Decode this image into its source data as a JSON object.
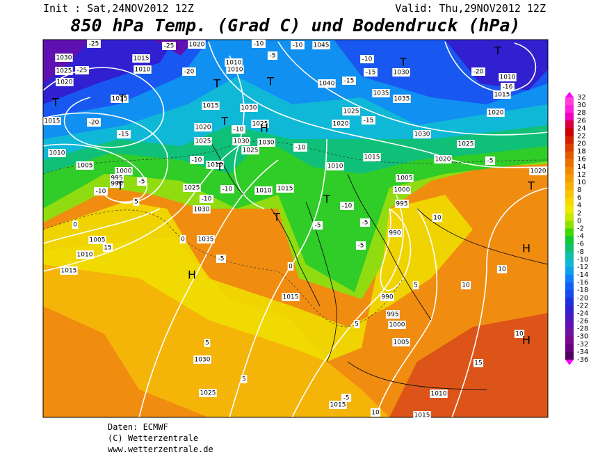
{
  "header": {
    "init": "Init : Sat,24NOV2012 12Z",
    "valid": "Valid: Thu,29NOV2012 12Z",
    "title": "850 hPa Temp. (Grad C) und Bodendruck (hPa)"
  },
  "footer": [
    "Daten: ECMWF",
    "(C) Wetterzentrale",
    "www.wetterzentrale.de"
  ],
  "colorbar": {
    "ticks": [
      32,
      30,
      28,
      26,
      24,
      22,
      20,
      18,
      16,
      14,
      12,
      10,
      8,
      6,
      4,
      2,
      0,
      -2,
      -4,
      -6,
      -8,
      -10,
      -12,
      -14,
      -16,
      -18,
      -20,
      -22,
      -24,
      -26,
      -28,
      -30,
      -32,
      -34,
      -36
    ],
    "colors": [
      "#ff3fd8",
      "#ff1fe0",
      "#f000c0",
      "#d8003c",
      "#c80000",
      "#d42000",
      "#dc3c00",
      "#e45800",
      "#ec7000",
      "#f08800",
      "#f49c00",
      "#f8b000",
      "#f8c400",
      "#f8d800",
      "#f0e800",
      "#c8e800",
      "#90e000",
      "#40d800",
      "#10c830",
      "#10c070",
      "#10c0a8",
      "#10b8d8",
      "#10a0f0",
      "#1080f8",
      "#1060f8",
      "#1848f0",
      "#2030e0",
      "#3020d0",
      "#4818c0",
      "#6010b0",
      "#7010a0",
      "#780890",
      "#6a0080",
      "#500060"
    ]
  },
  "map": {
    "labels": [
      "-25",
      "-25",
      "1020",
      "-10",
      "1045",
      "-10",
      "1030",
      "1015",
      "1025",
      "-25",
      "1010",
      "-20",
      "1010",
      "1010",
      "-5",
      "-10",
      "-15",
      "1030",
      "-20",
      "1010",
      "1020",
      "1015",
      "1040",
      "-15",
      "-16",
      "1015",
      "1035",
      "1035",
      "1015",
      "1030",
      "1025",
      "1020",
      "1015",
      "-20",
      "1025",
      "1020",
      "-15",
      "1020",
      "-10",
      "-15",
      "1030",
      "1025",
      "1030",
      "1030",
      "1025",
      "1010",
      "1025",
      "-10",
      "1015",
      "1020",
      "-5",
      "1005",
      "1000",
      "-10",
      "1010",
      "1010",
      "1020",
      "995",
      "990",
      "-5",
      "1005",
      "1025",
      "-10",
      "1010",
      "1015",
      "1000",
      "-10",
      "-10",
      "995",
      "-10",
      "1030",
      "0",
      "5",
      "-5",
      "10",
      "-5",
      "990",
      "1005",
      "1035",
      "0",
      "15",
      "-5",
      "1010",
      "-5",
      "0",
      "1015",
      "10",
      "5",
      "10",
      "1015",
      "990",
      "995",
      "1000",
      "5",
      "10",
      "1005",
      "5",
      "1030",
      "15",
      "5",
      "1025",
      "1010",
      "-5",
      "1015",
      "10",
      "1015"
    ],
    "centers": [
      "T",
      "T",
      "T",
      "T",
      "T",
      "T",
      "T",
      "H",
      "T",
      "T",
      "T",
      "T",
      "T",
      "H",
      "H",
      "H"
    ]
  }
}
